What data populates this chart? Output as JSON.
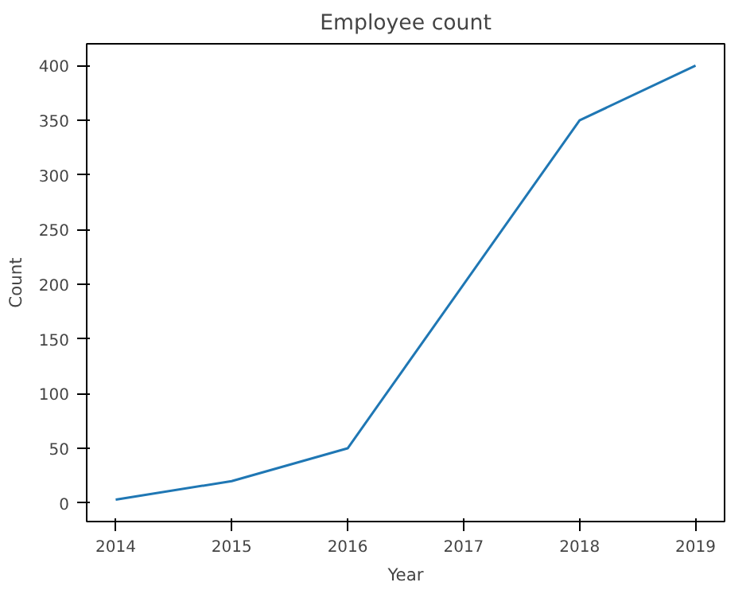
{
  "chart_data": {
    "type": "line",
    "title": "Employee count",
    "xlabel": "Year",
    "ylabel": "Count",
    "x": [
      2014,
      2015,
      2016,
      2017,
      2018,
      2019
    ],
    "series": [
      {
        "color": "#1f77b4",
        "values": [
          3,
          20,
          50,
          200,
          350,
          400
        ]
      }
    ],
    "xlim": [
      2013.75,
      2019.25
    ],
    "ylim": [
      -17,
      420
    ],
    "xticks": [
      2014,
      2015,
      2016,
      2017,
      2018,
      2019
    ],
    "yticks": [
      0,
      50,
      100,
      150,
      200,
      250,
      300,
      350,
      400
    ],
    "grid": false,
    "marker": "none",
    "line_style": "solid"
  }
}
